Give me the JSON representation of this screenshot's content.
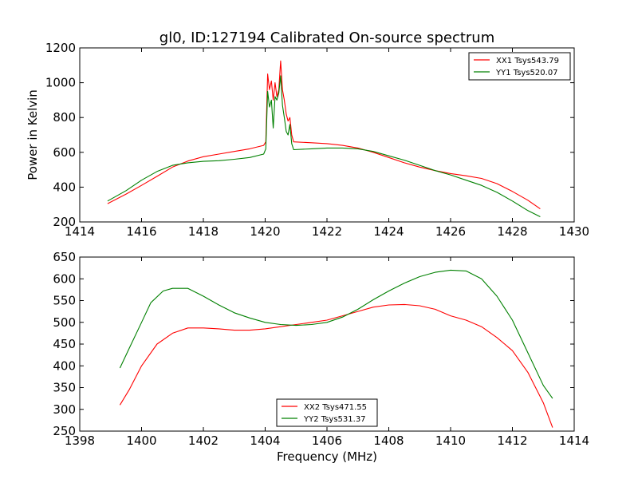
{
  "figure": {
    "title": "gl0, ID:127194 Calibrated On-source spectrum",
    "xlabel": "Frequency (MHz)",
    "ylabel": "Power in Kelvin"
  },
  "chart_data": [
    {
      "type": "line",
      "title": "gl0, ID:127194 Calibrated On-source spectrum",
      "xlabel": "",
      "ylabel": "Power in Kelvin",
      "xlim": [
        1414,
        1430
      ],
      "ylim": [
        200,
        1200
      ],
      "xticks": [
        1414,
        1416,
        1418,
        1420,
        1422,
        1424,
        1426,
        1428,
        1430
      ],
      "yticks": [
        200,
        400,
        600,
        800,
        1000,
        1200
      ],
      "grid": false,
      "legend_position": "top-right",
      "series": [
        {
          "name": "XX1 Tsys543.79",
          "color": "#ff0000",
          "points": [
            [
              1414.9,
              305
            ],
            [
              1415.5,
              360
            ],
            [
              1416,
              410
            ],
            [
              1416.5,
              462
            ],
            [
              1417,
              515
            ],
            [
              1417.5,
              550
            ],
            [
              1418,
              575
            ],
            [
              1418.5,
              590
            ],
            [
              1419,
              605
            ],
            [
              1419.5,
              620
            ],
            [
              1419.95,
              640
            ],
            [
              1420.02,
              660
            ],
            [
              1420.08,
              1050
            ],
            [
              1420.14,
              960
            ],
            [
              1420.2,
              1010
            ],
            [
              1420.26,
              900
            ],
            [
              1420.32,
              1000
            ],
            [
              1420.38,
              920
            ],
            [
              1420.44,
              960
            ],
            [
              1420.5,
              1125
            ],
            [
              1420.56,
              960
            ],
            [
              1420.62,
              900
            ],
            [
              1420.68,
              820
            ],
            [
              1420.74,
              780
            ],
            [
              1420.8,
              800
            ],
            [
              1420.86,
              700
            ],
            [
              1420.92,
              660
            ],
            [
              1421.5,
              655
            ],
            [
              1422,
              650
            ],
            [
              1422.5,
              640
            ],
            [
              1423,
              625
            ],
            [
              1423.5,
              600
            ],
            [
              1424,
              570
            ],
            [
              1424.5,
              540
            ],
            [
              1425,
              515
            ],
            [
              1425.5,
              495
            ],
            [
              1426,
              478
            ],
            [
              1426.5,
              465
            ],
            [
              1427,
              450
            ],
            [
              1427.5,
              420
            ],
            [
              1428,
              375
            ],
            [
              1428.5,
              325
            ],
            [
              1428.9,
              275
            ]
          ]
        },
        {
          "name": "YY1 Tsys520.07",
          "color": "#008000",
          "points": [
            [
              1414.9,
              320
            ],
            [
              1415.5,
              380
            ],
            [
              1416,
              440
            ],
            [
              1416.5,
              490
            ],
            [
              1417,
              525
            ],
            [
              1417.5,
              540
            ],
            [
              1418,
              548
            ],
            [
              1418.5,
              552
            ],
            [
              1419,
              560
            ],
            [
              1419.5,
              570
            ],
            [
              1419.95,
              590
            ],
            [
              1420.02,
              620
            ],
            [
              1420.08,
              950
            ],
            [
              1420.14,
              860
            ],
            [
              1420.2,
              900
            ],
            [
              1420.26,
              740
            ],
            [
              1420.32,
              920
            ],
            [
              1420.38,
              900
            ],
            [
              1420.44,
              940
            ],
            [
              1420.5,
              1040
            ],
            [
              1420.56,
              870
            ],
            [
              1420.62,
              800
            ],
            [
              1420.68,
              720
            ],
            [
              1420.74,
              700
            ],
            [
              1420.8,
              760
            ],
            [
              1420.86,
              650
            ],
            [
              1420.92,
              615
            ],
            [
              1421.5,
              620
            ],
            [
              1422,
              625
            ],
            [
              1422.5,
              625
            ],
            [
              1423,
              620
            ],
            [
              1423.5,
              605
            ],
            [
              1424,
              580
            ],
            [
              1424.5,
              555
            ],
            [
              1425,
              525
            ],
            [
              1425.5,
              495
            ],
            [
              1426,
              470
            ],
            [
              1426.5,
              440
            ],
            [
              1427,
              410
            ],
            [
              1427.5,
              370
            ],
            [
              1428,
              320
            ],
            [
              1428.5,
              265
            ],
            [
              1428.9,
              230
            ]
          ]
        }
      ]
    },
    {
      "type": "line",
      "title": "",
      "xlabel": "Frequency (MHz)",
      "ylabel": "",
      "xlim": [
        1398,
        1414
      ],
      "ylim": [
        250,
        650
      ],
      "xticks": [
        1398,
        1400,
        1402,
        1404,
        1406,
        1408,
        1410,
        1412,
        1414
      ],
      "yticks": [
        250,
        300,
        350,
        400,
        450,
        500,
        550,
        600,
        650
      ],
      "grid": false,
      "legend_position": "bottom-center",
      "series": [
        {
          "name": "XX2 Tsys471.55",
          "color": "#ff0000",
          "points": [
            [
              1399.3,
              310
            ],
            [
              1399.6,
              345
            ],
            [
              1400,
              400
            ],
            [
              1400.5,
              450
            ],
            [
              1401,
              475
            ],
            [
              1401.5,
              487
            ],
            [
              1402,
              487
            ],
            [
              1402.5,
              485
            ],
            [
              1403,
              482
            ],
            [
              1403.5,
              482
            ],
            [
              1404,
              485
            ],
            [
              1404.5,
              490
            ],
            [
              1405,
              495
            ],
            [
              1405.5,
              500
            ],
            [
              1406,
              505
            ],
            [
              1406.5,
              515
            ],
            [
              1407,
              525
            ],
            [
              1407.5,
              535
            ],
            [
              1408,
              540
            ],
            [
              1408.5,
              541
            ],
            [
              1409,
              538
            ],
            [
              1409.5,
              530
            ],
            [
              1410,
              515
            ],
            [
              1410.5,
              505
            ],
            [
              1411,
              490
            ],
            [
              1411.5,
              465
            ],
            [
              1412,
              435
            ],
            [
              1412.5,
              385
            ],
            [
              1413,
              315
            ],
            [
              1413.3,
              258
            ]
          ]
        },
        {
          "name": "YY2 Tsys531.37",
          "color": "#008000",
          "points": [
            [
              1399.3,
              395
            ],
            [
              1399.6,
              440
            ],
            [
              1400,
              500
            ],
            [
              1400.3,
              545
            ],
            [
              1400.7,
              572
            ],
            [
              1401,
              578
            ],
            [
              1401.5,
              578
            ],
            [
              1402,
              560
            ],
            [
              1402.5,
              540
            ],
            [
              1403,
              522
            ],
            [
              1403.5,
              510
            ],
            [
              1404,
              500
            ],
            [
              1404.5,
              495
            ],
            [
              1405,
              493
            ],
            [
              1405.5,
              495
            ],
            [
              1406,
              500
            ],
            [
              1406.5,
              512
            ],
            [
              1407,
              530
            ],
            [
              1407.5,
              552
            ],
            [
              1408,
              572
            ],
            [
              1408.5,
              590
            ],
            [
              1409,
              605
            ],
            [
              1409.5,
              615
            ],
            [
              1410,
              620
            ],
            [
              1410.5,
              618
            ],
            [
              1411,
              600
            ],
            [
              1411.5,
              560
            ],
            [
              1412,
              505
            ],
            [
              1412.5,
              430
            ],
            [
              1413,
              355
            ],
            [
              1413.3,
              325
            ]
          ]
        }
      ]
    }
  ]
}
